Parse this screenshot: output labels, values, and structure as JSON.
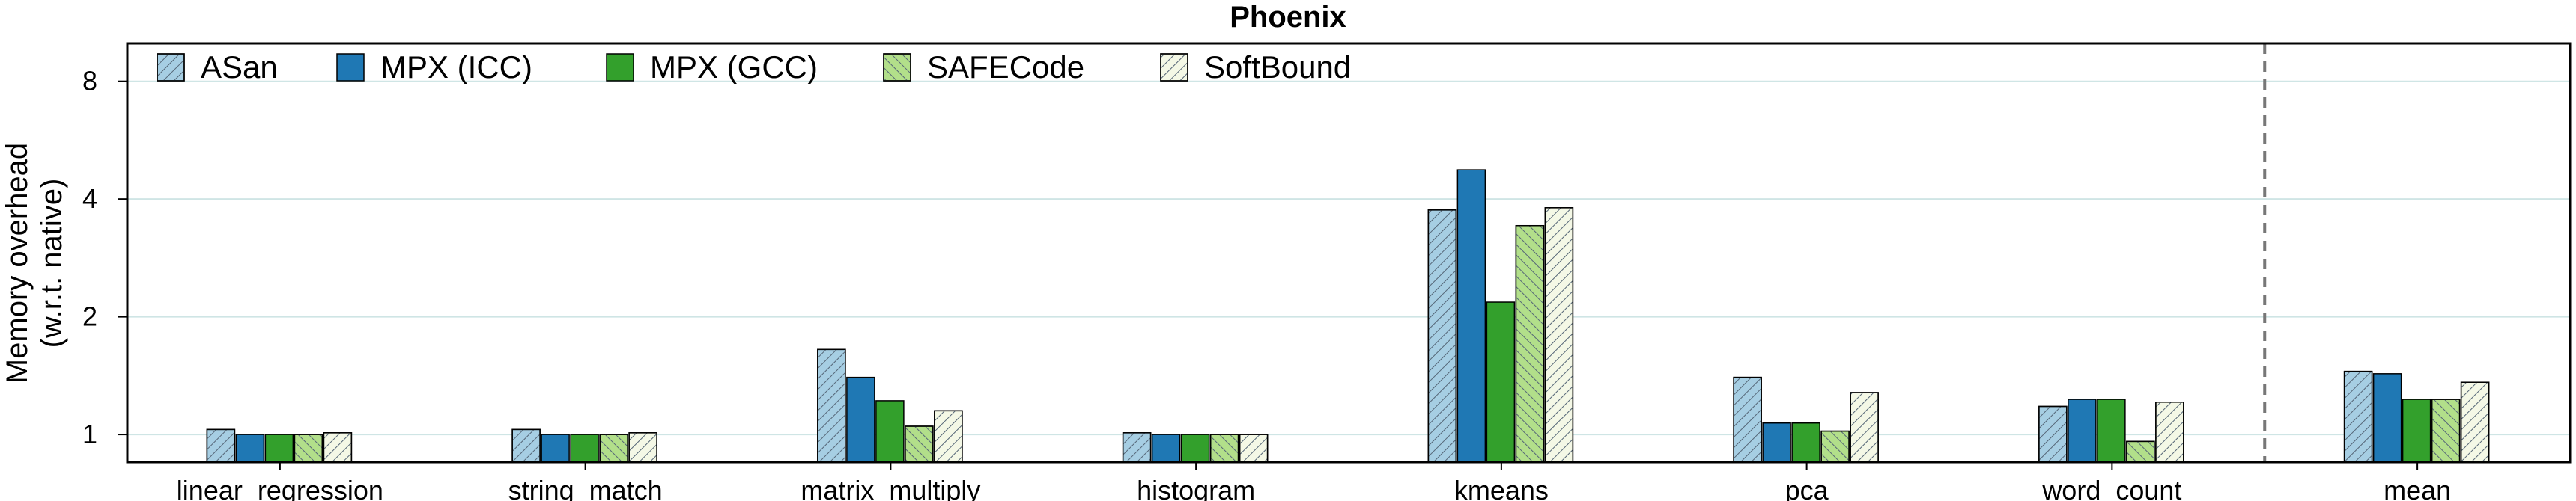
{
  "chart_data": {
    "type": "bar",
    "title": "Phoenix",
    "ylabel_line1": "Memory overhead",
    "ylabel_line2": "(w.r.t. native)",
    "yscale": "log2",
    "ylim": [
      0.85,
      10
    ],
    "yticks": [
      1,
      2,
      4,
      8
    ],
    "grid": true,
    "legend_position": "top-left",
    "categories": [
      "linear_regression",
      "string_match",
      "matrix_multiply",
      "histogram",
      "kmeans",
      "pca",
      "word_count",
      "mean"
    ],
    "separator_before": "mean",
    "series": [
      {
        "name": "ASan",
        "color": "#a6cee3",
        "pattern": "hatch-right",
        "values": [
          1.03,
          1.03,
          1.65,
          1.01,
          3.75,
          1.4,
          1.18,
          1.45
        ]
      },
      {
        "name": "MPX (ICC)",
        "color": "#1f78b4",
        "pattern": "solid",
        "values": [
          1.0,
          1.0,
          1.4,
          1.0,
          4.75,
          1.07,
          1.23,
          1.43
        ]
      },
      {
        "name": "MPX (GCC)",
        "color": "#33a02c",
        "pattern": "solid",
        "values": [
          1.0,
          1.0,
          1.22,
          1.0,
          2.18,
          1.07,
          1.23,
          1.23
        ]
      },
      {
        "name": "SAFECode",
        "color": "#b2df8a",
        "pattern": "hatch-left",
        "values": [
          1.0,
          1.0,
          1.05,
          1.0,
          3.42,
          1.02,
          0.96,
          1.23
        ]
      },
      {
        "name": "SoftBound",
        "color": "#f4f8e6",
        "pattern": "hatch-right",
        "values": [
          1.01,
          1.01,
          1.15,
          1.0,
          3.8,
          1.28,
          1.21,
          1.36
        ]
      }
    ]
  }
}
